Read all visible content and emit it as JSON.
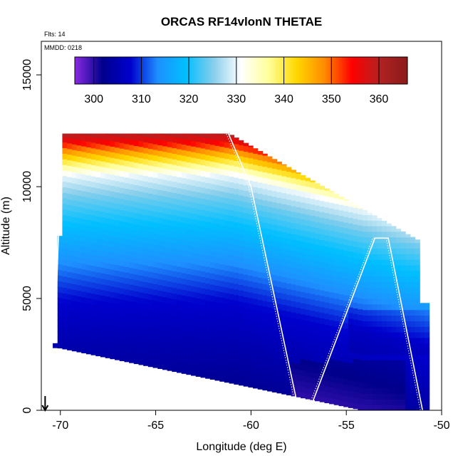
{
  "chart_data": {
    "type": "heatmap",
    "title": "ORCAS RF14vlonN THETAE",
    "annotations": [
      "Flts: 14",
      "MMDD: 0218"
    ],
    "xlabel": "Longitude (deg E)",
    "ylabel": "Altitude (m)",
    "xlim": [
      -71,
      -50
    ],
    "ylim": [
      0,
      16500
    ],
    "x_ticks": [
      -70,
      -65,
      -60,
      -55,
      -50
    ],
    "y_ticks": [
      0,
      5000,
      10000,
      15000
    ],
    "colorbar": {
      "range": [
        296,
        366
      ],
      "ticks": [
        300,
        310,
        320,
        330,
        340,
        350,
        360
      ],
      "colors": [
        "#8a2be2",
        "#00008b",
        "#0000cd",
        "#1e90ff",
        "#00bfff",
        "#87ceeb",
        "#ffffff",
        "#ffff99",
        "#ffd700",
        "#ff8c00",
        "#ff0000",
        "#b22222",
        "#8b1a1a"
      ]
    },
    "field_levels": [
      {
        "alt": 500,
        "value": 302
      },
      {
        "alt": 1500,
        "value": 303
      },
      {
        "alt": 3000,
        "value": 305
      },
      {
        "alt": 5000,
        "value": 308
      },
      {
        "alt": 7000,
        "value": 315
      },
      {
        "alt": 8500,
        "value": 320
      },
      {
        "alt": 9500,
        "value": 324
      },
      {
        "alt": 10500,
        "value": 330
      },
      {
        "alt": 11000,
        "value": 338
      },
      {
        "alt": 11500,
        "value": 346
      },
      {
        "alt": 12000,
        "value": 355
      },
      {
        "alt": 12500,
        "value": 362
      }
    ],
    "flight_track": [
      {
        "lon": -70.3,
        "alt": 3000
      },
      {
        "lon": -70.1,
        "alt": 7800
      },
      {
        "lon": -70.0,
        "alt": 12400
      },
      {
        "lon": -61.2,
        "alt": 12400
      },
      {
        "lon": -60.0,
        "alt": 10000
      },
      {
        "lon": -57.5,
        "alt": 0
      },
      {
        "lon": -56.8,
        "alt": 300
      },
      {
        "lon": -53.5,
        "alt": 7700
      },
      {
        "lon": -52.8,
        "alt": 7700
      },
      {
        "lon": -51.0,
        "alt": 0
      }
    ],
    "marker": {
      "lon": -70.8,
      "alt": 0,
      "type": "arrow-down"
    }
  }
}
